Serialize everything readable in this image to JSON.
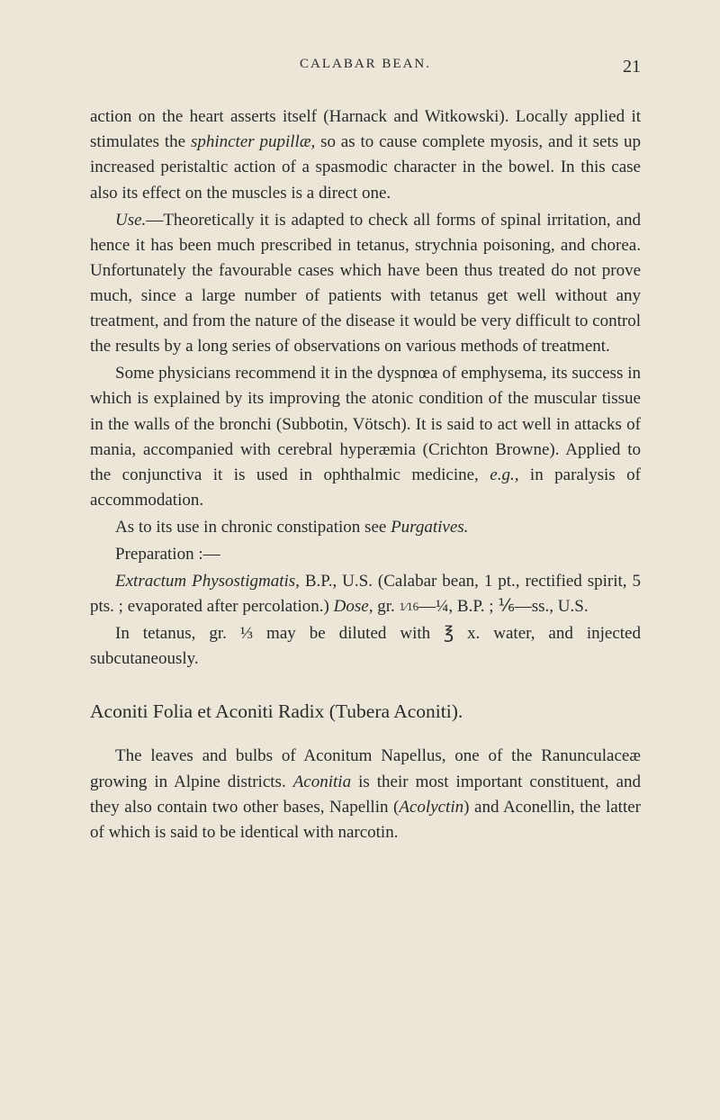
{
  "page": {
    "running_title": "calabar bean.",
    "page_number": "21"
  },
  "paragraphs": {
    "p1a": "action on the heart asserts itself (Harnack and Witkowski). Locally applied it stimulates the ",
    "p1b": "sphincter pupillæ,",
    "p1c": " so as to cause complete myosis, and it sets up increased peristaltic action of a spasmodic character in the bowel. In this case also its effect on the muscles is a direct one.",
    "p2a": "Use.",
    "p2b": "—Theoretically it is adapted to check all forms of spinal irritation, and hence it has been much prescribed in tetanus, strychnia poisoning, and chorea. Unfortunately the favourable cases which have been thus treated do not prove much, since a large number of patients with tetanus get well without any treatment, and from the nature of the disease it would be very difficult to control the results by a long series of observations on various methods of treatment.",
    "p3": "Some physicians recommend it in the dyspnœa of emphysema, its success in which is explained by its improving the atonic condition of the muscular tissue in the walls of the bronchi (Subbotin, Vötsch). It is said to act well in attacks of mania, accompanied with cerebral hyperæmia (Crichton Browne). Applied to the conjunctiva it is used in ophthalmic medicine, ",
    "p3b": "e.g.,",
    "p3c": " in paralysis of accommodation.",
    "p4a": "As to its use in chronic constipation see ",
    "p4b": "Purgatives.",
    "p5": "Preparation :—",
    "p6a": "Extractum Physostigmatis,",
    "p6b": " B.P., U.S. (Calabar bean, 1 pt., rectified spirit, 5 pts. ; evaporated after percolation.) ",
    "p6c": "Dose,",
    "p6d": " gr. ",
    "p6frac1": "1⁄16",
    "p6dash": "—",
    "p6frac2": "¼",
    "p6e": ", B.P. ; ",
    "p6frac3": "⅙",
    "p6f": "—ss., U.S.",
    "p7a": "In tetanus, gr. ",
    "p7frac": "⅓",
    "p7b": " may be diluted with ",
    "p7c": "℥ x.",
    "p7d": " water, and injected subcutaneously.",
    "sectitle": "Aconiti Folia et Aconiti Radix (Tubera Aconiti).",
    "p8a": "The leaves and bulbs of Aconitum Napellus, one of the Ranunculaceæ growing in Alpine districts. ",
    "p8b": "Aconitia",
    "p8c": " is their most important constituent, and they also contain two other bases, Napellin (",
    "p8d": "Acolyctin",
    "p8e": ") and Aconellin, the latter of which is said to be identical with narcotin."
  }
}
